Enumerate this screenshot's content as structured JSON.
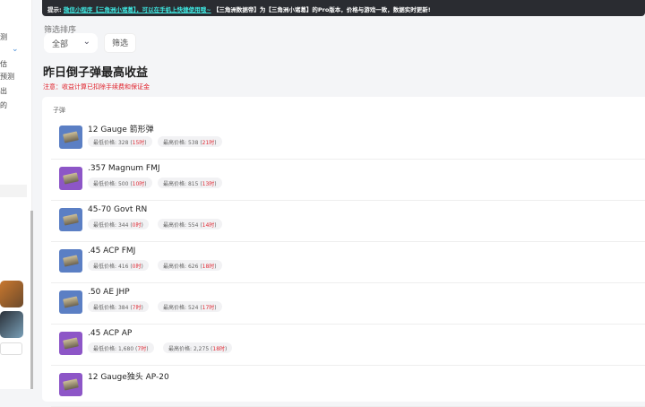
{
  "sidebar": {
    "items": [
      "测",
      "",
      "估",
      "预测",
      "出",
      "的"
    ]
  },
  "banner": {
    "prefix": "提示:",
    "link": "微信小程序【三角洲小诸葛】，可以在手机上快捷使用哦~",
    "suffix": "【三角洲数据帝】为【三角洲小诸葛】的Pro版本，价格与游戏一致，数据实时更新!"
  },
  "filter": {
    "label": "筛选排序",
    "select_value": "全部",
    "button": "筛选"
  },
  "title": "昨日倒子弹最高收益",
  "note": "注意：收益计算已扣除手续费和保证金",
  "category": "子弹",
  "colors": {
    "accent_link": "#3ee6e0",
    "note": "#e0202a",
    "blue_icon": "#5b7fc4",
    "purple_icon": "#8d56c7"
  },
  "items": [
    {
      "name": "12 Gauge 箭形弹",
      "icon": "blue",
      "low_label": "最低价格:",
      "low": "328",
      "low_time": "15时",
      "high_label": "最高价格:",
      "high": "538",
      "high_time": "21时"
    },
    {
      "name": ".357 Magnum FMJ",
      "icon": "purple",
      "low_label": "最低价格:",
      "low": "500",
      "low_time": "10时",
      "high_label": "最高价格:",
      "high": "815",
      "high_time": "13时"
    },
    {
      "name": "45-70 Govt RN",
      "icon": "blue",
      "low_label": "最低价格:",
      "low": "344",
      "low_time": "0时",
      "high_label": "最高价格:",
      "high": "554",
      "high_time": "14时"
    },
    {
      "name": ".45 ACP FMJ",
      "icon": "blue",
      "low_label": "最低价格:",
      "low": "416",
      "low_time": "0时",
      "high_label": "最高价格:",
      "high": "626",
      "high_time": "18时"
    },
    {
      "name": ".50 AE JHP",
      "icon": "blue",
      "low_label": "最低价格:",
      "low": "384",
      "low_time": "7时",
      "high_label": "最高价格:",
      "high": "524",
      "high_time": "17时"
    },
    {
      "name": ".45 ACP AP",
      "icon": "purple",
      "low_label": "最低价格:",
      "low": "1,680",
      "low_time": "7时",
      "high_label": "最高价格:",
      "high": "2,275",
      "high_time": "18时"
    },
    {
      "name": "12 Gauge独头 AP-20",
      "icon": "purple"
    }
  ]
}
